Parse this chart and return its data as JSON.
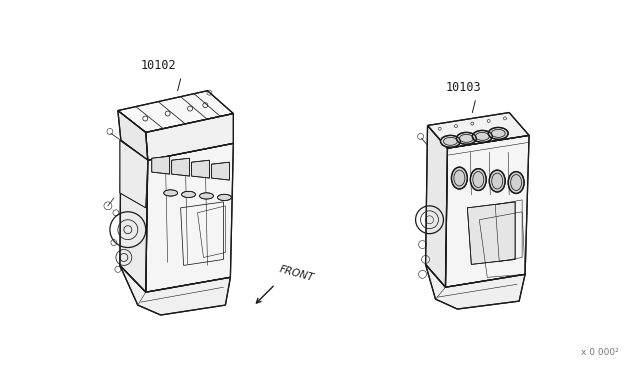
{
  "background_color": "#ffffff",
  "line_color": "#1a1a1a",
  "text_color": "#1a1a1a",
  "label_10102": "10102",
  "label_10103": "10103",
  "front_label": "FRONT",
  "watermark": "x 0 000²",
  "label_fontsize": 8.5,
  "front_fontsize": 7.5,
  "watermark_fontsize": 6.5
}
